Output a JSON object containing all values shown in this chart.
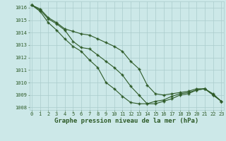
{
  "title": "Graphe pression niveau de la mer (hPa)",
  "xlabel_hours": [
    0,
    1,
    2,
    3,
    4,
    5,
    6,
    7,
    8,
    9,
    10,
    11,
    12,
    13,
    14,
    15,
    16,
    17,
    18,
    19,
    20,
    21,
    22,
    23
  ],
  "line1": [
    1016.2,
    1015.9,
    1015.2,
    1014.8,
    1014.3,
    1014.1,
    1013.9,
    1013.8,
    1013.5,
    1013.2,
    1012.9,
    1012.5,
    1011.7,
    1011.1,
    1009.8,
    1009.1,
    1009.0,
    1009.1,
    1009.2,
    1009.3,
    1009.5,
    1009.5,
    1009.1,
    1008.5
  ],
  "line2": [
    1016.2,
    1015.8,
    1015.1,
    1014.7,
    1014.2,
    1013.3,
    1012.8,
    1012.7,
    1012.2,
    1011.7,
    1011.2,
    1010.6,
    1009.7,
    1009.0,
    1008.3,
    1008.3,
    1008.5,
    1008.7,
    1009.0,
    1009.1,
    1009.4,
    1009.5,
    1009.0,
    1008.5
  ],
  "line3": [
    1016.2,
    1015.7,
    1014.8,
    1014.2,
    1013.5,
    1012.9,
    1012.5,
    1011.8,
    1011.2,
    1010.0,
    1009.5,
    1008.9,
    1008.4,
    1008.3,
    1008.3,
    1008.5,
    1008.6,
    1008.9,
    1009.1,
    1009.2,
    1009.4,
    1009.5,
    1009.0,
    1008.5
  ],
  "ylim": [
    1007.8,
    1016.5
  ],
  "yticks": [
    1008,
    1009,
    1010,
    1011,
    1012,
    1013,
    1014,
    1015,
    1016
  ],
  "bg_color": "#cce8e8",
  "grid_color": "#aacccc",
  "line_color": "#2d5a27",
  "marker": "+",
  "linewidth": 0.8,
  "markersize": 3.5,
  "markeredgewidth": 1.0,
  "title_fontsize": 6.5,
  "tick_fontsize": 5.0,
  "fig_width": 3.2,
  "fig_height": 2.0,
  "dpi": 100
}
